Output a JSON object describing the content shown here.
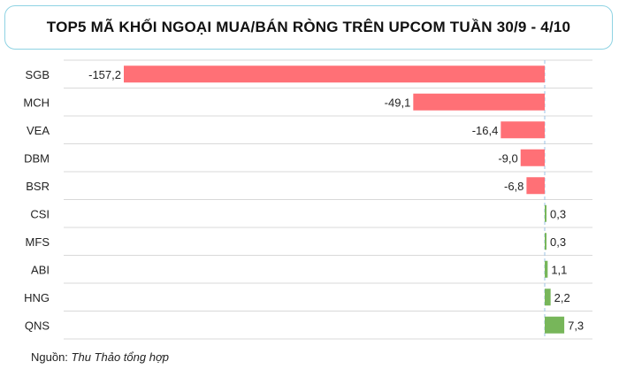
{
  "title": "TOP5 MÃ KHỐI NGOẠI MUA/BÁN RÒNG TRÊN UPCOM TUẦN 30/9 - 4/10",
  "source": {
    "label": "Nguồn:",
    "author": "Thu Thảo tổng hợp"
  },
  "colors": {
    "negative": "#ff7076",
    "positive": "#77b65a",
    "grid": "#d9d9d9",
    "zero_line": "#9dc3e6"
  },
  "chart_data": {
    "type": "bar",
    "orientation": "horizontal",
    "categories": [
      "SGB",
      "MCH",
      "VEA",
      "DBM",
      "BSR",
      "CSI",
      "MFS",
      "ABI",
      "HNG",
      "QNS"
    ],
    "values": [
      -157.2,
      -49.1,
      -16.4,
      -9.0,
      -6.8,
      0.3,
      0.3,
      1.1,
      2.2,
      7.3
    ],
    "value_labels": [
      "-157,2",
      "-49,1",
      "-16,4",
      "-9,0",
      "-6,8",
      "0,3",
      "0,3",
      "1,1",
      "2,2",
      "7,3"
    ],
    "xlim": [
      -160,
      10
    ],
    "grid": true
  }
}
